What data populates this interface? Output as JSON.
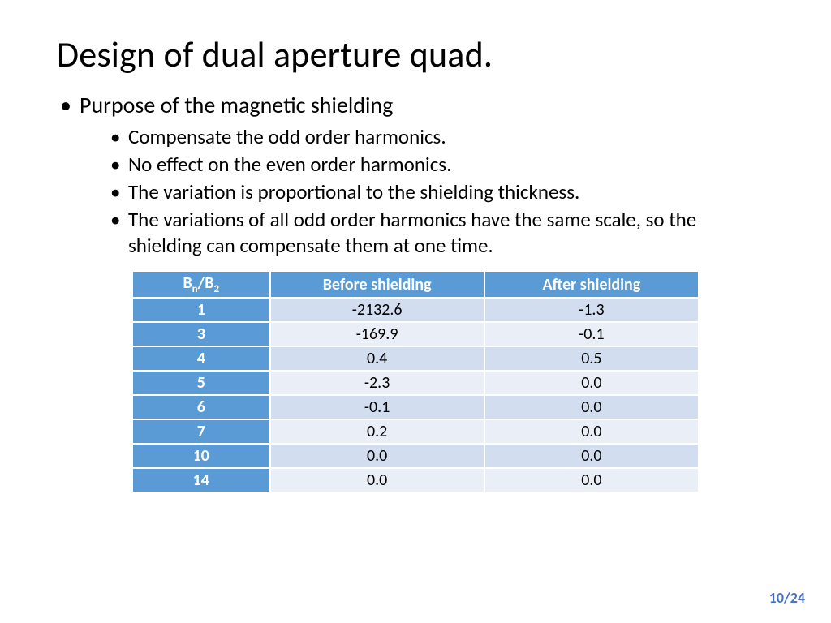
{
  "title": "Design of dual aperture quad.",
  "main_bullet": "Purpose of the magnetic shielding",
  "sub_bullets": [
    "Compensate the odd order harmonics.",
    "No effect on the even order harmonics.",
    "The variation is proportional to the shielding thickness.",
    "The variations of all odd order harmonics have the same scale, so the shielding can compensate them at one time."
  ],
  "table": {
    "col_header_main": "B",
    "col_header_sub1": "n",
    "col_header_sep": "/B",
    "col_header_sub2": "2",
    "columns": [
      "Before shielding",
      "After shielding"
    ],
    "rows": [
      {
        "label": "1",
        "before": "-2132.6",
        "after": "-1.3"
      },
      {
        "label": "3",
        "before": "-169.9",
        "after": "-0.1"
      },
      {
        "label": "4",
        "before": "0.4",
        "after": "0.5"
      },
      {
        "label": "5",
        "before": "-2.3",
        "after": "0.0"
      },
      {
        "label": "6",
        "before": "-0.1",
        "after": "0.0"
      },
      {
        "label": "7",
        "before": "0.2",
        "after": "0.0"
      },
      {
        "label": "10",
        "before": "0.0",
        "after": "0.0"
      },
      {
        "label": "14",
        "before": "0.0",
        "after": "0.0"
      }
    ],
    "header_bg": "#5b9bd5",
    "header_fg": "#ffffff",
    "row_odd_bg": "#d2deef",
    "row_even_bg": "#eaeff7",
    "border_color": "#ffffff",
    "font_size": 20
  },
  "page_number": "10/24",
  "page_number_color": "#4472c4",
  "background_color": "#ffffff",
  "title_fontsize": 44,
  "bullet_l1_fontsize": 28,
  "bullet_l2_fontsize": 25
}
